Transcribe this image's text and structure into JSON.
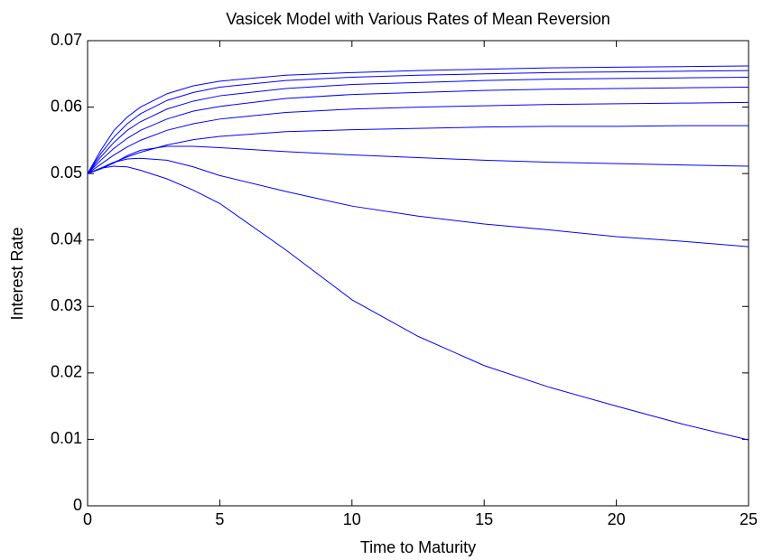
{
  "chart_data": {
    "type": "line",
    "title": "Vasicek Model with Various Rates of Mean Reversion",
    "xlabel": "Time to Maturity",
    "ylabel": "Interest Rate",
    "x": [
      0,
      0.5,
      1,
      1.5,
      2,
      3,
      4,
      5,
      7.5,
      10,
      12.5,
      15,
      17.5,
      20,
      22.5,
      25
    ],
    "series": [
      {
        "color": "#0000ff",
        "values": [
          0.05,
          0.0535,
          0.0565,
          0.0585,
          0.06,
          0.062,
          0.0632,
          0.0639,
          0.0648,
          0.0652,
          0.0655,
          0.0657,
          0.0659,
          0.066,
          0.0661,
          0.0662
        ]
      },
      {
        "color": "#0000ff",
        "values": [
          0.05,
          0.053,
          0.0555,
          0.0575,
          0.059,
          0.061,
          0.0622,
          0.063,
          0.064,
          0.0645,
          0.0648,
          0.065,
          0.0652,
          0.0653,
          0.0654,
          0.0655
        ]
      },
      {
        "color": "#0000ff",
        "values": [
          0.05,
          0.0525,
          0.0547,
          0.0565,
          0.0578,
          0.0597,
          0.0609,
          0.0617,
          0.0628,
          0.0634,
          0.0637,
          0.064,
          0.0642,
          0.0643,
          0.0644,
          0.0645
        ]
      },
      {
        "color": "#0000ff",
        "values": [
          0.05,
          0.052,
          0.0538,
          0.0553,
          0.0565,
          0.0582,
          0.0594,
          0.0601,
          0.0613,
          0.0619,
          0.0622,
          0.0625,
          0.0627,
          0.0628,
          0.0629,
          0.063
        ]
      },
      {
        "color": "#0000ff",
        "values": [
          0.05,
          0.0514,
          0.0528,
          0.054,
          0.055,
          0.0565,
          0.0575,
          0.0582,
          0.0592,
          0.0597,
          0.06,
          0.0602,
          0.0604,
          0.0605,
          0.0606,
          0.0607
        ]
      },
      {
        "color": "#0000ff",
        "values": [
          0.05,
          0.0508,
          0.0517,
          0.0525,
          0.0532,
          0.0543,
          0.0551,
          0.0556,
          0.0563,
          0.0566,
          0.0568,
          0.057,
          0.0571,
          0.0571,
          0.0572,
          0.0572
        ]
      },
      {
        "color": "#0000ff",
        "values": [
          0.05,
          0.0507,
          0.0516,
          0.0527,
          0.0535,
          0.0541,
          0.0541,
          0.0539,
          0.0533,
          0.0528,
          0.0524,
          0.052,
          0.0517,
          0.0515,
          0.0513,
          0.0511
        ]
      },
      {
        "color": "#0000ff",
        "values": [
          0.05,
          0.0508,
          0.0517,
          0.0522,
          0.0523,
          0.052,
          0.051,
          0.0497,
          0.0473,
          0.0451,
          0.0436,
          0.0424,
          0.0415,
          0.0405,
          0.0398,
          0.039
        ]
      },
      {
        "color": "#0000ff",
        "values": [
          0.05,
          0.0508,
          0.0511,
          0.051,
          0.0505,
          0.0492,
          0.0475,
          0.0455,
          0.0385,
          0.031,
          0.0255,
          0.0211,
          0.0178,
          0.015,
          0.0123,
          0.0099
        ]
      }
    ],
    "xlim": [
      0,
      25
    ],
    "xticks": [
      0,
      5,
      10,
      15,
      20,
      25
    ],
    "ylim": [
      0,
      0.07
    ],
    "yticks": [
      0,
      0.01,
      0.02,
      0.03,
      0.04,
      0.05,
      0.06,
      0.07
    ]
  }
}
